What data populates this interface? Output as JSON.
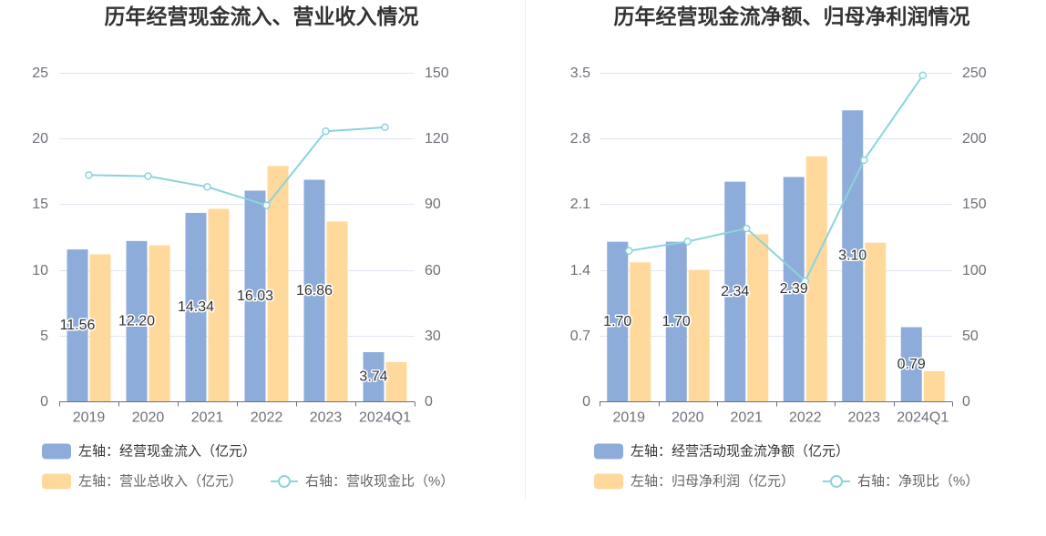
{
  "chart_data": [
    {
      "type": "bar",
      "title": "历年经营现金流入、营业收入情况",
      "categories": [
        "2019",
        "2020",
        "2021",
        "2022",
        "2023",
        "2024Q1"
      ],
      "y_left": {
        "range": [
          0,
          25
        ],
        "ticks": [
          "0",
          "5",
          "10",
          "15",
          "20",
          "25"
        ]
      },
      "y_right": {
        "range": [
          0,
          150
        ],
        "ticks": [
          "0",
          "30",
          "60",
          "90",
          "120",
          "150"
        ]
      },
      "grid": true,
      "legend_position": "bottom-left",
      "series": [
        {
          "name": "左轴：经营现金流入（亿元）",
          "type": "bar",
          "axis": "left",
          "color": "#8eacda",
          "values": [
            11.56,
            12.2,
            14.34,
            16.03,
            16.86,
            3.74
          ],
          "data_labels": [
            "11.56",
            "12.20",
            "14.34",
            "16.03",
            "16.86",
            "3.74"
          ]
        },
        {
          "name": "左轴：营业总收入（亿元）",
          "type": "bar",
          "axis": "left",
          "color": "#fed99b",
          "values": [
            11.19,
            11.87,
            14.65,
            17.91,
            13.68,
            2.99
          ]
        },
        {
          "name": "右轴：营收现金比（%）",
          "type": "line",
          "axis": "right",
          "color": "#8bd4da",
          "values": [
            103.3,
            102.8,
            97.9,
            89.5,
            123.3,
            125.1
          ]
        }
      ]
    },
    {
      "type": "bar",
      "title": "历年经营现金流净额、归母净利润情况",
      "categories": [
        "2019",
        "2020",
        "2021",
        "2022",
        "2023",
        "2024Q1"
      ],
      "y_left": {
        "range": [
          0,
          3.5
        ],
        "ticks": [
          "0",
          "0.7",
          "1.4",
          "2.1",
          "2.8",
          "3.5"
        ]
      },
      "y_right": {
        "range": [
          0,
          250
        ],
        "ticks": [
          "0",
          "50",
          "100",
          "150",
          "200",
          "250"
        ]
      },
      "grid": true,
      "legend_position": "bottom-left",
      "series": [
        {
          "name": "左轴：经营活动现金流净额（亿元）",
          "type": "bar",
          "axis": "left",
          "color": "#8eacda",
          "values": [
            1.7,
            1.7,
            2.34,
            2.39,
            3.1,
            0.79
          ],
          "data_labels": [
            "1.70",
            "1.70",
            "2.34",
            "2.39",
            "3.10",
            "0.79"
          ]
        },
        {
          "name": "左轴：归母净利润（亿元）",
          "type": "bar",
          "axis": "left",
          "color": "#fed99b",
          "values": [
            1.48,
            1.4,
            1.78,
            2.61,
            1.69,
            0.32
          ]
        },
        {
          "name": "右轴：净现比（%）",
          "type": "line",
          "axis": "right",
          "color": "#8bd4da",
          "values": [
            114.5,
            121.6,
            131.6,
            91.5,
            183.5,
            248.0
          ]
        }
      ]
    }
  ]
}
